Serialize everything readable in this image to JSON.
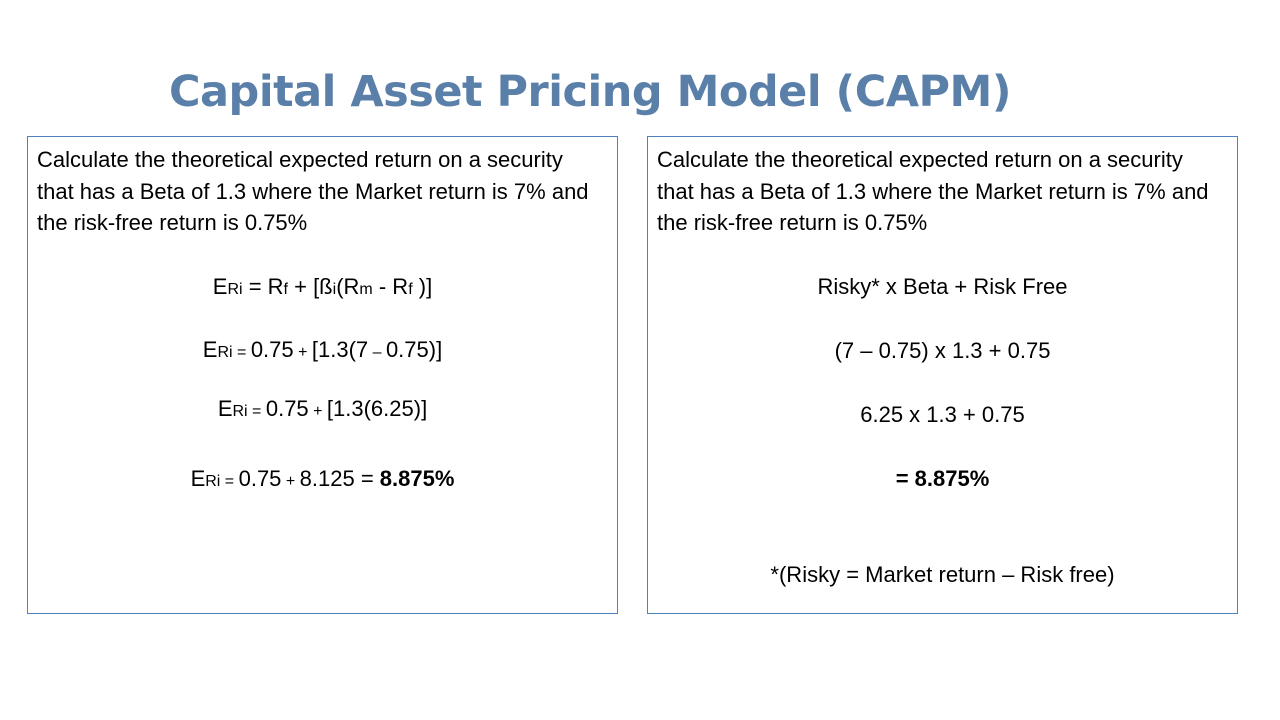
{
  "slide": {
    "title": "Capital Asset Pricing Model (CAPM)",
    "title_color": "#5a7fa8",
    "border_color": "#4f81bd"
  },
  "left_box": {
    "problem": "Calculate the theoretical expected return on a security that has a Beta of 1.3 where the Market return is 7% and the risk-free return is 0.75%",
    "formula": {
      "e": "E",
      "ri": "Ri",
      "eq": " = R",
      "f1": "f",
      "mid": " + [ß",
      "i": "i",
      "open": "(R",
      "m": "m",
      "minus": " - R",
      "f2": "f",
      "close": " )]"
    },
    "sub1": {
      "e": "E",
      "ri": "Ri",
      "eq": " = ",
      "a": "0.75",
      "plus": " + ",
      "b": "[1.3(7",
      "dash": " – ",
      "c": "0.75)]"
    },
    "sub2": {
      "e": "E",
      "ri": "Ri",
      "eq": " = ",
      "a": "0.75",
      "plus": " + ",
      "b": "[1.3(6.25)]"
    },
    "result": {
      "e": "E",
      "ri": "Ri",
      "eq": " = ",
      "a": "0.75",
      "plus": " + ",
      "b": "8.125 = ",
      "answer": "8.875%"
    }
  },
  "right_box": {
    "problem": "Calculate the theoretical expected return on a security that has a Beta of 1.3 where the Market return is 7% and the risk-free return is 0.75%",
    "formula": "Risky* x Beta + Risk Free",
    "sub1": "(7 – 0.75) x 1.3 + 0.75",
    "sub2": "6.25 x 1.3 + 0.75",
    "result": "= 8.875%",
    "footnote": "*(Risky = Market return – Risk free)"
  }
}
